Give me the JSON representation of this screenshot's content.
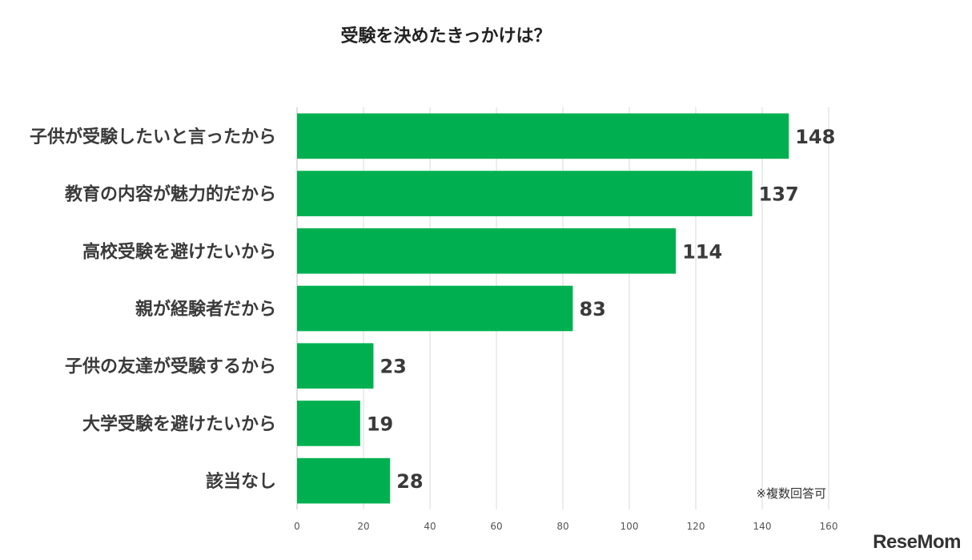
{
  "chart_data": {
    "type": "bar",
    "orientation": "horizontal",
    "title": "受験を決めたきっかけは？",
    "categories": [
      "子供が受験したいと言ったから",
      "教育の内容が魅力的だから",
      "高校受験を避けたいから",
      "親が経験者だから",
      "子供の友達が受験するから",
      "大学受験を避けたいから",
      "該当なし"
    ],
    "values": [
      148,
      137,
      114,
      83,
      23,
      19,
      28
    ],
    "xlim": [
      0,
      160
    ],
    "xticks": [
      0,
      20,
      40,
      60,
      80,
      100,
      120,
      140,
      160
    ],
    "grid": true,
    "bar_color": "#00b050",
    "note": "※複数回答可"
  },
  "logo": {
    "text": "ReseMom"
  }
}
